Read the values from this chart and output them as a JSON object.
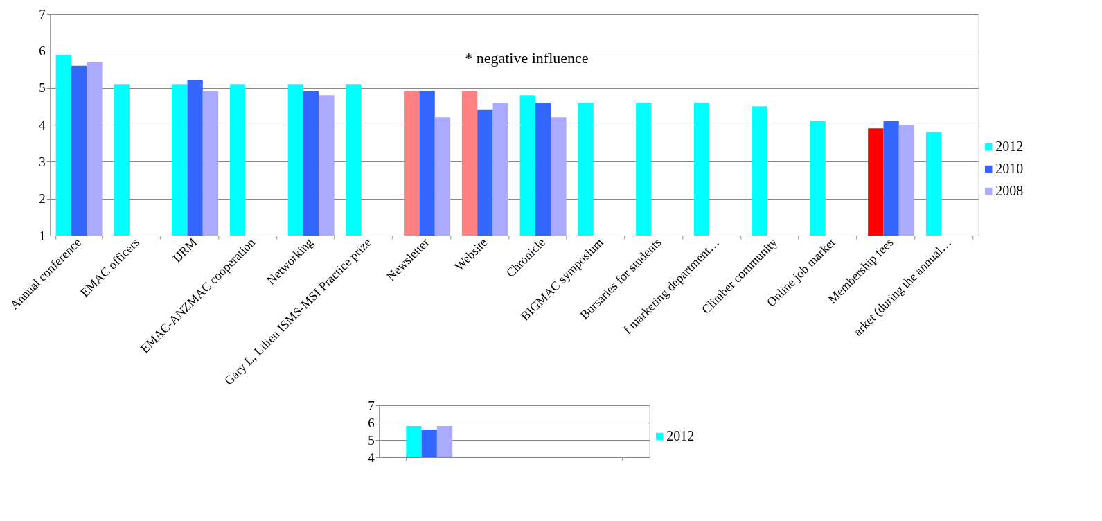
{
  "chart_data": [
    {
      "type": "bar",
      "categories": [
        "Annual conference",
        "EMAC officers",
        "IJRM",
        "EMAC-ANZMAC cooperation",
        "Networking",
        "Gary L, Lilien ISMS-MSI Practice prize",
        "Newsletter",
        "Website",
        "Chronicle",
        "BIGMAC symposium",
        "Bursaries for students",
        "f marketing department…",
        "Climber community",
        "Online job market",
        "Membership fees",
        "arket (during the annual…"
      ],
      "series": [
        {
          "name": "2012",
          "color": "#00ffff",
          "colors": [
            "#00ffff",
            "#00ffff",
            "#00ffff",
            "#00ffff",
            "#00ffff",
            "#00ffff",
            "#ff8080",
            "#ff8080",
            "#00ffff",
            "#00ffff",
            "#00ffff",
            "#00ffff",
            "#00ffff",
            "#00ffff",
            "#ff0000",
            "#00ffff"
          ],
          "values": [
            5.9,
            5.1,
            5.1,
            5.1,
            5.1,
            5.1,
            4.9,
            4.9,
            4.8,
            4.6,
            4.6,
            4.6,
            4.5,
            4.1,
            3.9,
            3.8
          ]
        },
        {
          "name": "2010",
          "color": "#3366ff",
          "values": [
            5.6,
            null,
            5.2,
            null,
            4.9,
            null,
            4.9,
            4.4,
            4.6,
            null,
            null,
            null,
            null,
            null,
            4.1,
            null
          ]
        },
        {
          "name": "2008",
          "color": "#aaaaff",
          "values": [
            5.7,
            null,
            4.9,
            null,
            4.8,
            null,
            4.2,
            4.6,
            4.2,
            null,
            null,
            null,
            null,
            null,
            4.0,
            null
          ]
        }
      ],
      "ylim": [
        1,
        7
      ],
      "yticks": [
        1,
        2,
        3,
        4,
        5,
        6,
        7
      ],
      "grid": "y",
      "legend": "right",
      "annotations": [
        "* negative influence"
      ]
    },
    {
      "type": "bar",
      "categories": [
        null
      ],
      "series": [
        {
          "name": "2012",
          "color": "#00ffff",
          "values": [
            5.8
          ]
        },
        {
          "color": "#3366ff",
          "values": [
            5.6
          ]
        },
        {
          "color": "#aaaaff",
          "values": [
            5.8
          ]
        }
      ],
      "ylim": [
        4,
        7
      ],
      "yticks": [
        4,
        5,
        6,
        7
      ],
      "grid": "y",
      "legend": "right",
      "tick_labels": "y"
    }
  ]
}
